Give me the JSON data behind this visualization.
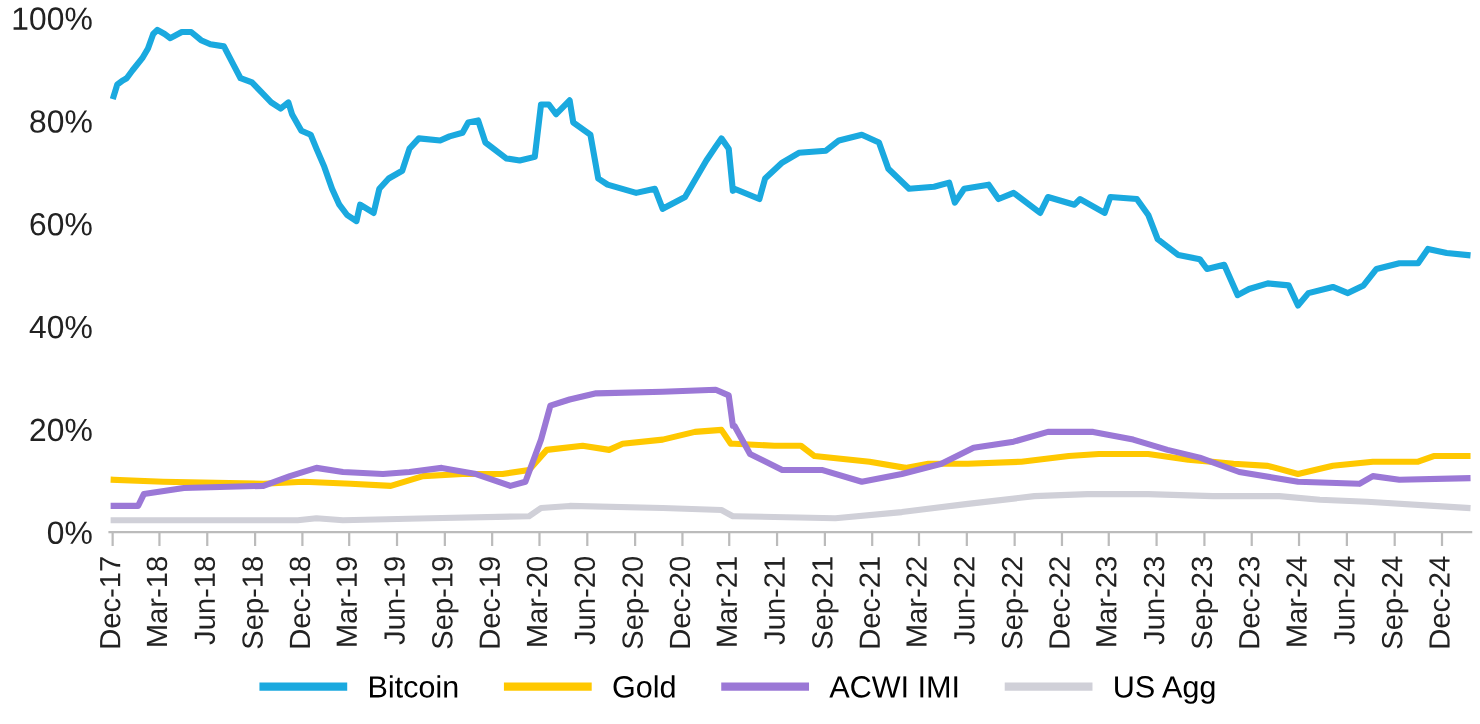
{
  "chart_data": {
    "type": "line",
    "ylim": [
      0,
      100
    ],
    "yticks": [
      {
        "value": 0,
        "label": "0%"
      },
      {
        "value": 20,
        "label": "20%"
      },
      {
        "value": 40,
        "label": "40%"
      },
      {
        "value": 60,
        "label": "60%"
      },
      {
        "value": 80,
        "label": "80%"
      },
      {
        "value": 100,
        "label": "100%"
      }
    ],
    "xlim": [
      "2017-11-25",
      "2025-01-26"
    ],
    "xticks": [
      {
        "value": "2017-12-01",
        "label": "Dec-17"
      },
      {
        "value": "2018-03-01",
        "label": "Mar-18"
      },
      {
        "value": "2018-06-01",
        "label": "Jun-18"
      },
      {
        "value": "2018-09-01",
        "label": "Sep-18"
      },
      {
        "value": "2018-12-01",
        "label": "Dec-18"
      },
      {
        "value": "2019-03-01",
        "label": "Mar-19"
      },
      {
        "value": "2019-06-01",
        "label": "Jun-19"
      },
      {
        "value": "2019-09-01",
        "label": "Sep-19"
      },
      {
        "value": "2019-12-01",
        "label": "Dec-19"
      },
      {
        "value": "2020-03-01",
        "label": "Mar-20"
      },
      {
        "value": "2020-06-01",
        "label": "Jun-20"
      },
      {
        "value": "2020-09-01",
        "label": "Sep-20"
      },
      {
        "value": "2020-12-01",
        "label": "Dec-20"
      },
      {
        "value": "2021-03-01",
        "label": "Mar-21"
      },
      {
        "value": "2021-06-01",
        "label": "Jun-21"
      },
      {
        "value": "2021-09-01",
        "label": "Sep-21"
      },
      {
        "value": "2021-12-01",
        "label": "Dec-21"
      },
      {
        "value": "2022-03-01",
        "label": "Mar-22"
      },
      {
        "value": "2022-06-01",
        "label": "Jun-22"
      },
      {
        "value": "2022-09-01",
        "label": "Sep-22"
      },
      {
        "value": "2022-12-01",
        "label": "Dec-22"
      },
      {
        "value": "2023-03-01",
        "label": "Mar-23"
      },
      {
        "value": "2023-06-01",
        "label": "Jun-23"
      },
      {
        "value": "2023-09-01",
        "label": "Sep-23"
      },
      {
        "value": "2023-12-01",
        "label": "Dec-23"
      },
      {
        "value": "2024-03-01",
        "label": "Mar-24"
      },
      {
        "value": "2024-06-01",
        "label": "Jun-24"
      },
      {
        "value": "2024-09-01",
        "label": "Sep-24"
      },
      {
        "value": "2024-12-01",
        "label": "Dec-24"
      }
    ],
    "grid": false,
    "legend": "bottom",
    "marker": "none",
    "line_style": "solid",
    "series": [
      {
        "name": "Bitcoin",
        "color": "#1aa9df",
        "x": [
          "2017-12-03",
          "2017-12-10",
          "2017-12-21",
          "2017-12-28",
          "2018-01-08",
          "2018-01-27",
          "2018-02-07",
          "2018-02-17",
          "2018-02-25",
          "2018-03-11",
          "2018-03-22",
          "2018-04-13",
          "2018-05-01",
          "2018-05-20",
          "2018-06-07",
          "2018-07-03",
          "2018-07-21",
          "2018-08-04",
          "2018-08-26",
          "2018-09-14",
          "2018-10-02",
          "2018-10-20",
          "2018-11-04",
          "2018-11-11",
          "2018-11-29",
          "2018-12-17",
          "2018-12-28",
          "2019-01-12",
          "2019-01-27",
          "2019-02-10",
          "2019-02-25",
          "2019-03-15",
          "2019-03-22",
          "2019-04-17",
          "2019-04-28",
          "2019-05-16",
          "2019-06-11",
          "2019-06-25",
          "2019-07-13",
          "2019-08-23",
          "2019-09-10",
          "2019-10-05",
          "2019-10-16",
          "2019-11-04",
          "2019-11-18",
          "2019-12-28",
          "2020-01-23",
          "2020-02-21",
          "2020-03-04",
          "2020-03-19",
          "2020-04-02",
          "2020-04-28",
          "2020-05-05",
          "2020-06-07",
          "2020-06-22",
          "2020-07-10",
          "2020-09-03",
          "2020-10-09",
          "2020-10-24",
          "2020-12-06",
          "2021-01-16",
          "2021-02-03",
          "2021-02-14",
          "2021-02-28",
          "2021-03-08",
          "2021-03-11",
          "2021-04-28",
          "2021-05-09",
          "2021-06-11",
          "2021-07-13",
          "2021-09-03",
          "2021-09-28",
          "2021-11-11",
          "2021-12-14",
          "2022-01-01",
          "2022-02-10",
          "2022-03-30",
          "2022-04-28",
          "2022-05-09",
          "2022-05-27",
          "2022-07-13",
          "2022-08-01",
          "2022-08-30",
          "2022-10-20",
          "2022-11-04",
          "2022-12-25",
          "2023-01-05",
          "2023-02-21",
          "2023-03-04",
          "2023-04-24",
          "2023-05-16",
          "2023-06-03",
          "2023-07-13",
          "2023-08-23",
          "2023-09-06",
          "2023-10-09",
          "2023-11-04",
          "2023-11-26",
          "2024-01-01",
          "2024-02-10",
          "2024-02-28",
          "2024-03-19",
          "2024-05-05",
          "2024-06-03",
          "2024-07-03",
          "2024-07-28",
          "2024-09-10",
          "2024-10-16",
          "2024-11-04",
          "2024-12-10",
          "2025-01-19"
        ],
        "values": [
          84.8,
          87.1,
          87.9,
          88.3,
          89.8,
          92.2,
          94.1,
          96.9,
          97.7,
          96.9,
          96.1,
          97.3,
          97.3,
          95.7,
          94.9,
          94.5,
          91.0,
          88.3,
          87.5,
          85.5,
          83.6,
          82.4,
          83.6,
          81.3,
          78.1,
          77.3,
          74.6,
          71.1,
          66.8,
          63.7,
          61.7,
          60.5,
          63.7,
          62.1,
          66.8,
          68.8,
          70.3,
          74.6,
          76.6,
          76.2,
          77.0,
          77.7,
          79.7,
          80.1,
          75.8,
          72.7,
          72.3,
          73.0,
          83.2,
          83.2,
          81.3,
          84.0,
          79.7,
          77.3,
          68.8,
          67.6,
          66.0,
          66.8,
          62.9,
          65.2,
          72.3,
          75.0,
          76.6,
          74.6,
          66.4,
          66.8,
          64.8,
          68.8,
          71.9,
          73.8,
          74.2,
          76.2,
          77.3,
          75.8,
          70.7,
          66.8,
          67.2,
          68.0,
          64.1,
          66.8,
          67.6,
          64.8,
          66.0,
          62.1,
          65.2,
          63.7,
          64.8,
          62.1,
          65.2,
          64.8,
          61.7,
          57.0,
          53.9,
          53.1,
          51.2,
          52.0,
          46.1,
          47.3,
          48.4,
          48.0,
          44.1,
          46.5,
          47.7,
          46.5,
          48.0,
          51.2,
          52.3,
          52.3,
          55.1,
          54.3,
          53.9
        ]
      },
      {
        "name": "Gold",
        "color": "#ffc800",
        "x": [
          "2017-12-03",
          "2018-03-08",
          "2018-09-17",
          "2018-12-03",
          "2019-03-04",
          "2019-05-20",
          "2019-07-21",
          "2019-10-05",
          "2019-12-21",
          "2020-02-10",
          "2020-03-15",
          "2020-05-23",
          "2020-07-13",
          "2020-08-08",
          "2020-10-24",
          "2020-12-25",
          "2021-02-14",
          "2021-03-04",
          "2021-03-11",
          "2021-05-27",
          "2021-07-17",
          "2021-08-12",
          "2021-11-26",
          "2022-02-03",
          "2022-03-19",
          "2022-06-03",
          "2022-09-14",
          "2022-12-14",
          "2023-02-10",
          "2023-05-16",
          "2023-08-01",
          "2023-10-27",
          "2024-01-01",
          "2024-02-28",
          "2024-05-05",
          "2024-07-21",
          "2024-10-16",
          "2024-11-15",
          "2025-01-19"
        ],
        "values": [
          10.2,
          9.8,
          9.4,
          9.8,
          9.4,
          9.0,
          10.9,
          11.3,
          11.3,
          12.1,
          16.0,
          16.8,
          16.0,
          17.2,
          18.0,
          19.5,
          19.9,
          17.2,
          17.2,
          16.8,
          16.8,
          14.8,
          13.7,
          12.5,
          13.3,
          13.3,
          13.7,
          14.8,
          15.2,
          15.2,
          14.1,
          13.3,
          12.9,
          11.3,
          12.9,
          13.7,
          13.7,
          14.8,
          14.8
        ]
      },
      {
        "name": "ACWI IMI",
        "color": "#9b78d6",
        "x": [
          "2017-12-03",
          "2018-01-19",
          "2018-01-30",
          "2018-04-17",
          "2018-09-17",
          "2018-11-07",
          "2018-12-28",
          "2019-02-17",
          "2019-05-05",
          "2019-06-25",
          "2019-08-26",
          "2019-10-31",
          "2020-01-05",
          "2020-02-03",
          "2020-03-04",
          "2020-03-22",
          "2020-04-28",
          "2020-06-18",
          "2020-10-24",
          "2021-02-03",
          "2021-02-28",
          "2021-03-08",
          "2021-03-11",
          "2021-04-10",
          "2021-06-11",
          "2021-08-26",
          "2021-11-11",
          "2022-01-27",
          "2022-04-13",
          "2022-06-14",
          "2022-08-30",
          "2022-11-04",
          "2023-01-30",
          "2023-04-17",
          "2023-06-22",
          "2023-08-23",
          "2023-11-07",
          "2024-02-28",
          "2024-06-25",
          "2024-07-21",
          "2024-09-10",
          "2025-01-19"
        ],
        "values": [
          5.1,
          5.1,
          7.4,
          8.6,
          9.0,
          10.9,
          12.5,
          11.7,
          11.3,
          11.7,
          12.5,
          11.3,
          9.0,
          9.8,
          18.0,
          24.6,
          25.8,
          27.0,
          27.3,
          27.7,
          26.6,
          20.7,
          20.7,
          15.2,
          12.1,
          12.1,
          9.8,
          11.3,
          13.3,
          16.4,
          17.6,
          19.5,
          19.5,
          18.0,
          16.0,
          14.5,
          11.7,
          9.8,
          9.4,
          10.9,
          10.2,
          10.5
        ]
      },
      {
        "name": "US Agg",
        "color": "#d0d0d8",
        "x": [
          "2017-12-03",
          "2018-11-22",
          "2018-12-28",
          "2019-02-17",
          "2019-08-04",
          "2020-02-10",
          "2020-03-04",
          "2020-04-28",
          "2020-10-24",
          "2021-02-14",
          "2021-03-08",
          "2021-03-11",
          "2021-09-21",
          "2022-01-27",
          "2022-06-03",
          "2022-10-09",
          "2023-01-19",
          "2023-05-16",
          "2023-09-17",
          "2024-01-23",
          "2024-04-10",
          "2024-07-10",
          "2024-11-15",
          "2025-01-19"
        ],
        "values": [
          2.3,
          2.3,
          2.7,
          2.3,
          2.7,
          3.1,
          4.7,
          5.1,
          4.7,
          4.3,
          3.1,
          3.1,
          2.7,
          3.9,
          5.5,
          7.0,
          7.4,
          7.4,
          7.0,
          7.0,
          6.3,
          5.9,
          5.1,
          4.7
        ]
      }
    ]
  }
}
